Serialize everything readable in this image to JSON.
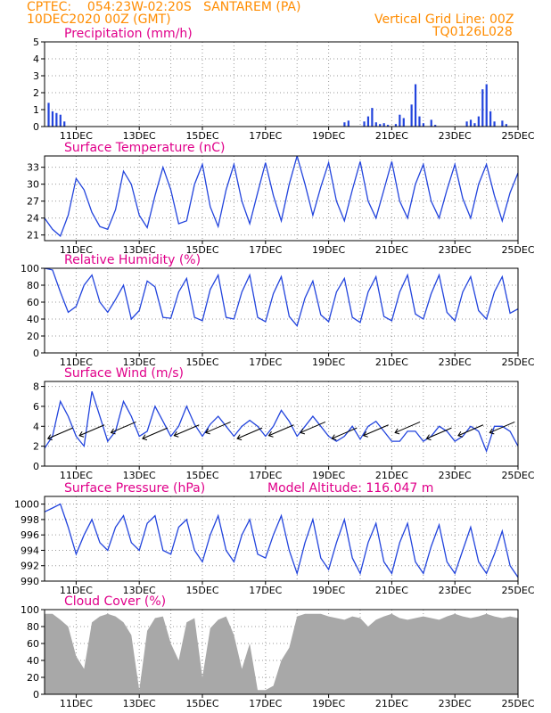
{
  "header": {
    "line1": "CPTEC:    054:23W-02:20S   SANTAREM (PA)",
    "line2": "10DEC2020 00Z (GMT)",
    "right1": "Vertical Grid Line: 00Z",
    "right2": "TQ0126L028"
  },
  "colors": {
    "series": "#2244dd",
    "cloud": "#a8a8a8",
    "title": "#e0008a",
    "header": "#ff8c00",
    "grid": "#999999"
  },
  "date_labels": [
    "11DEC",
    "13DEC",
    "15DEC",
    "17DEC",
    "19DEC",
    "21DEC",
    "23DEC",
    "25DEC"
  ],
  "chart_data": [
    {
      "id": "precip",
      "type": "bar",
      "title": "Precipitation (mm/h)",
      "ylabel": "",
      "ylim": [
        0,
        5
      ],
      "yticks": [
        0,
        1,
        2,
        3,
        4,
        5
      ],
      "grid": true,
      "x_range": [
        "2020-12-10T00:00Z",
        "2020-12-25T00:00Z"
      ],
      "x": [
        "2020-12-10T03:00Z",
        "2020-12-10T06:00Z",
        "2020-12-10T09:00Z",
        "2020-12-10T12:00Z",
        "2020-12-10T15:00Z",
        "2020-12-19T12:00Z",
        "2020-12-19T15:00Z",
        "2020-12-20T03:00Z",
        "2020-12-20T06:00Z",
        "2020-12-20T09:00Z",
        "2020-12-20T12:00Z",
        "2020-12-20T15:00Z",
        "2020-12-20T18:00Z",
        "2020-12-20T21:00Z",
        "2020-12-21T03:00Z",
        "2020-12-21T06:00Z",
        "2020-12-21T09:00Z",
        "2020-12-21T15:00Z",
        "2020-12-21T18:00Z",
        "2020-12-21T21:00Z",
        "2020-12-22T00:00Z",
        "2020-12-22T06:00Z",
        "2020-12-22T09:00Z",
        "2020-12-23T09:00Z",
        "2020-12-23T12:00Z",
        "2020-12-23T15:00Z",
        "2020-12-23T18:00Z",
        "2020-12-23T21:00Z",
        "2020-12-24T00:00Z",
        "2020-12-24T03:00Z",
        "2020-12-24T06:00Z",
        "2020-12-24T12:00Z",
        "2020-12-24T15:00Z"
      ],
      "values": [
        1.4,
        0.9,
        0.8,
        0.7,
        0.3,
        0.25,
        0.35,
        0.3,
        0.6,
        1.1,
        0.25,
        0.15,
        0.2,
        0.1,
        0.15,
        0.7,
        0.5,
        1.3,
        2.5,
        0.6,
        0.2,
        0.4,
        0.1,
        0.3,
        0.4,
        0.2,
        0.6,
        2.2,
        2.5,
        0.9,
        0.3,
        0.35,
        0.15
      ]
    },
    {
      "id": "temp",
      "type": "line",
      "title": "Surface Temperature (nC)",
      "ylabel": "",
      "ylim": [
        20,
        35
      ],
      "yticks": [
        21,
        24,
        27,
        30,
        33
      ],
      "grid": true,
      "x_range": [
        "2020-12-10T00:00Z",
        "2020-12-25T00:00Z"
      ],
      "x": [
        "2020-12-10T00:00Z",
        "2020-12-10T06:00Z",
        "2020-12-10T12:00Z",
        "2020-12-10T18:00Z",
        "2020-12-11T00:00Z",
        "2020-12-11T06:00Z",
        "2020-12-11T12:00Z",
        "2020-12-11T18:00Z",
        "2020-12-12T00:00Z",
        "2020-12-12T06:00Z",
        "2020-12-12T12:00Z",
        "2020-12-12T18:00Z",
        "2020-12-13T00:00Z",
        "2020-12-13T06:00Z",
        "2020-12-13T12:00Z",
        "2020-12-13T18:00Z",
        "2020-12-14T00:00Z",
        "2020-12-14T06:00Z",
        "2020-12-14T12:00Z",
        "2020-12-14T18:00Z",
        "2020-12-15T00:00Z",
        "2020-12-15T06:00Z",
        "2020-12-15T12:00Z",
        "2020-12-15T18:00Z",
        "2020-12-16T00:00Z",
        "2020-12-16T06:00Z",
        "2020-12-16T12:00Z",
        "2020-12-16T18:00Z",
        "2020-12-17T00:00Z",
        "2020-12-17T06:00Z",
        "2020-12-17T12:00Z",
        "2020-12-17T18:00Z",
        "2020-12-18T00:00Z",
        "2020-12-18T06:00Z",
        "2020-12-18T12:00Z",
        "2020-12-18T18:00Z",
        "2020-12-19T00:00Z",
        "2020-12-19T06:00Z",
        "2020-12-19T12:00Z",
        "2020-12-19T18:00Z",
        "2020-12-20T00:00Z",
        "2020-12-20T06:00Z",
        "2020-12-20T12:00Z",
        "2020-12-20T18:00Z",
        "2020-12-21T00:00Z",
        "2020-12-21T06:00Z",
        "2020-12-21T12:00Z",
        "2020-12-21T18:00Z",
        "2020-12-22T00:00Z",
        "2020-12-22T06:00Z",
        "2020-12-22T12:00Z",
        "2020-12-22T18:00Z",
        "2020-12-23T00:00Z",
        "2020-12-23T06:00Z",
        "2020-12-23T12:00Z",
        "2020-12-23T18:00Z",
        "2020-12-24T00:00Z",
        "2020-12-24T06:00Z",
        "2020-12-24T12:00Z",
        "2020-12-24T18:00Z",
        "2020-12-25T00:00Z"
      ],
      "values": [
        24,
        22,
        20.8,
        24.5,
        31,
        29,
        25,
        22.5,
        22,
        25.5,
        32.3,
        30,
        24.5,
        22.3,
        28,
        33,
        29,
        23,
        23.5,
        30,
        33.5,
        26,
        22.5,
        29,
        33.5,
        27,
        23,
        28.5,
        33.8,
        28,
        23.5,
        30,
        35,
        30,
        24.5,
        29.5,
        33.8,
        27,
        23.5,
        29,
        34,
        27,
        24,
        29,
        34,
        27,
        24,
        30,
        33.5,
        27,
        24,
        29,
        33.5,
        27.5,
        24,
        30,
        33.5,
        28,
        23.5,
        28.5,
        32
      ]
    },
    {
      "id": "rh",
      "type": "line",
      "title": "Relative Humidity (%)",
      "ylabel": "",
      "ylim": [
        0,
        100
      ],
      "yticks": [
        0,
        20,
        40,
        60,
        80,
        100
      ],
      "grid": true,
      "x_range": [
        "2020-12-10T00:00Z",
        "2020-12-25T00:00Z"
      ],
      "x": [
        "2020-12-10T00:00Z",
        "2020-12-10T06:00Z",
        "2020-12-10T12:00Z",
        "2020-12-10T18:00Z",
        "2020-12-11T00:00Z",
        "2020-12-11T06:00Z",
        "2020-12-11T12:00Z",
        "2020-12-11T18:00Z",
        "2020-12-12T00:00Z",
        "2020-12-12T06:00Z",
        "2020-12-12T12:00Z",
        "2020-12-12T18:00Z",
        "2020-12-13T00:00Z",
        "2020-12-13T06:00Z",
        "2020-12-13T12:00Z",
        "2020-12-13T18:00Z",
        "2020-12-14T00:00Z",
        "2020-12-14T06:00Z",
        "2020-12-14T12:00Z",
        "2020-12-14T18:00Z",
        "2020-12-15T00:00Z",
        "2020-12-15T06:00Z",
        "2020-12-15T12:00Z",
        "2020-12-15T18:00Z",
        "2020-12-16T00:00Z",
        "2020-12-16T06:00Z",
        "2020-12-16T12:00Z",
        "2020-12-16T18:00Z",
        "2020-12-17T00:00Z",
        "2020-12-17T06:00Z",
        "2020-12-17T12:00Z",
        "2020-12-17T18:00Z",
        "2020-12-18T00:00Z",
        "2020-12-18T06:00Z",
        "2020-12-18T12:00Z",
        "2020-12-18T18:00Z",
        "2020-12-19T00:00Z",
        "2020-12-19T06:00Z",
        "2020-12-19T12:00Z",
        "2020-12-19T18:00Z",
        "2020-12-20T00:00Z",
        "2020-12-20T06:00Z",
        "2020-12-20T12:00Z",
        "2020-12-20T18:00Z",
        "2020-12-21T00:00Z",
        "2020-12-21T06:00Z",
        "2020-12-21T12:00Z",
        "2020-12-21T18:00Z",
        "2020-12-22T00:00Z",
        "2020-12-22T06:00Z",
        "2020-12-22T12:00Z",
        "2020-12-22T18:00Z",
        "2020-12-23T00:00Z",
        "2020-12-23T06:00Z",
        "2020-12-23T12:00Z",
        "2020-12-23T18:00Z",
        "2020-12-24T00:00Z",
        "2020-12-24T06:00Z",
        "2020-12-24T12:00Z",
        "2020-12-24T18:00Z",
        "2020-12-25T00:00Z"
      ],
      "values": [
        100,
        98,
        72,
        48,
        55,
        80,
        92,
        60,
        48,
        63,
        80,
        40,
        50,
        85,
        78,
        42,
        41,
        72,
        88,
        42,
        38,
        75,
        92,
        42,
        40,
        72,
        92,
        42,
        37,
        70,
        90,
        43,
        32,
        65,
        85,
        45,
        37,
        72,
        88,
        42,
        36,
        72,
        90,
        43,
        38,
        72,
        92,
        46,
        40,
        70,
        92,
        48,
        38,
        72,
        90,
        50,
        40,
        72,
        90,
        47,
        52
      ]
    },
    {
      "id": "wind",
      "type": "line",
      "title": "Surface Wind (m/s)",
      "ylabel": "",
      "ylim": [
        0,
        8.5
      ],
      "yticks": [
        0,
        2,
        4,
        6,
        8
      ],
      "grid": true,
      "x_range": [
        "2020-12-10T00:00Z",
        "2020-12-25T00:00Z"
      ],
      "x": [
        "2020-12-10T00:00Z",
        "2020-12-10T06:00Z",
        "2020-12-10T12:00Z",
        "2020-12-10T18:00Z",
        "2020-12-11T00:00Z",
        "2020-12-11T06:00Z",
        "2020-12-11T12:00Z",
        "2020-12-11T18:00Z",
        "2020-12-12T00:00Z",
        "2020-12-12T06:00Z",
        "2020-12-12T12:00Z",
        "2020-12-12T18:00Z",
        "2020-12-13T00:00Z",
        "2020-12-13T06:00Z",
        "2020-12-13T12:00Z",
        "2020-12-13T18:00Z",
        "2020-12-14T00:00Z",
        "2020-12-14T06:00Z",
        "2020-12-14T12:00Z",
        "2020-12-14T18:00Z",
        "2020-12-15T00:00Z",
        "2020-12-15T06:00Z",
        "2020-12-15T12:00Z",
        "2020-12-15T18:00Z",
        "2020-12-16T00:00Z",
        "2020-12-16T06:00Z",
        "2020-12-16T12:00Z",
        "2020-12-16T18:00Z",
        "2020-12-17T00:00Z",
        "2020-12-17T06:00Z",
        "2020-12-17T12:00Z",
        "2020-12-17T18:00Z",
        "2020-12-18T00:00Z",
        "2020-12-18T06:00Z",
        "2020-12-18T12:00Z",
        "2020-12-18T18:00Z",
        "2020-12-19T00:00Z",
        "2020-12-19T06:00Z",
        "2020-12-19T12:00Z",
        "2020-12-19T18:00Z",
        "2020-12-20T00:00Z",
        "2020-12-20T06:00Z",
        "2020-12-20T12:00Z",
        "2020-12-20T18:00Z",
        "2020-12-21T00:00Z",
        "2020-12-21T06:00Z",
        "2020-12-21T12:00Z",
        "2020-12-21T18:00Z",
        "2020-12-22T00:00Z",
        "2020-12-22T06:00Z",
        "2020-12-22T12:00Z",
        "2020-12-22T18:00Z",
        "2020-12-23T00:00Z",
        "2020-12-23T06:00Z",
        "2020-12-23T12:00Z",
        "2020-12-23T18:00Z",
        "2020-12-24T00:00Z",
        "2020-12-24T06:00Z",
        "2020-12-24T12:00Z",
        "2020-12-24T18:00Z",
        "2020-12-25T00:00Z"
      ],
      "values": [
        1.8,
        3,
        6.5,
        5,
        3,
        2,
        7.5,
        5,
        2.5,
        3.5,
        6.5,
        5,
        3,
        3.5,
        6,
        4.5,
        3,
        4,
        6,
        4.2,
        3,
        4.2,
        5,
        4,
        3,
        4,
        4.6,
        4,
        3,
        4,
        5.6,
        4.5,
        3,
        4,
        5,
        4,
        3,
        2.5,
        3,
        4,
        2.7,
        4,
        4.5,
        3.5,
        2.5,
        2.5,
        3.5,
        3.5,
        2.5,
        3,
        4,
        3.5,
        2.5,
        3,
        4,
        3.5,
        1.5,
        4,
        4,
        3.5,
        2
      ]
    },
    {
      "id": "pres",
      "type": "line",
      "title": "Surface Pressure (hPa)",
      "subtitle": "Model Altitude: 116.047 m",
      "ylabel": "",
      "ylim": [
        990,
        1001
      ],
      "yticks": [
        990,
        992,
        994,
        996,
        998,
        1000
      ],
      "grid": true,
      "x_range": [
        "2020-12-10T00:00Z",
        "2020-12-25T00:00Z"
      ],
      "x": [
        "2020-12-10T00:00Z",
        "2020-12-10T06:00Z",
        "2020-12-10T12:00Z",
        "2020-12-10T18:00Z",
        "2020-12-11T00:00Z",
        "2020-12-11T06:00Z",
        "2020-12-11T12:00Z",
        "2020-12-11T18:00Z",
        "2020-12-12T00:00Z",
        "2020-12-12T06:00Z",
        "2020-12-12T12:00Z",
        "2020-12-12T18:00Z",
        "2020-12-13T00:00Z",
        "2020-12-13T06:00Z",
        "2020-12-13T12:00Z",
        "2020-12-13T18:00Z",
        "2020-12-14T00:00Z",
        "2020-12-14T06:00Z",
        "2020-12-14T12:00Z",
        "2020-12-14T18:00Z",
        "2020-12-15T00:00Z",
        "2020-12-15T06:00Z",
        "2020-12-15T12:00Z",
        "2020-12-15T18:00Z",
        "2020-12-16T00:00Z",
        "2020-12-16T06:00Z",
        "2020-12-16T12:00Z",
        "2020-12-16T18:00Z",
        "2020-12-17T00:00Z",
        "2020-12-17T06:00Z",
        "2020-12-17T12:00Z",
        "2020-12-17T18:00Z",
        "2020-12-18T00:00Z",
        "2020-12-18T06:00Z",
        "2020-12-18T12:00Z",
        "2020-12-18T18:00Z",
        "2020-12-19T00:00Z",
        "2020-12-19T06:00Z",
        "2020-12-19T12:00Z",
        "2020-12-19T18:00Z",
        "2020-12-20T00:00Z",
        "2020-12-20T06:00Z",
        "2020-12-20T12:00Z",
        "2020-12-20T18:00Z",
        "2020-12-21T00:00Z",
        "2020-12-21T06:00Z",
        "2020-12-21T12:00Z",
        "2020-12-21T18:00Z",
        "2020-12-22T00:00Z",
        "2020-12-22T06:00Z",
        "2020-12-22T12:00Z",
        "2020-12-22T18:00Z",
        "2020-12-23T00:00Z",
        "2020-12-23T06:00Z",
        "2020-12-23T12:00Z",
        "2020-12-23T18:00Z",
        "2020-12-24T00:00Z",
        "2020-12-24T06:00Z",
        "2020-12-24T12:00Z",
        "2020-12-24T18:00Z",
        "2020-12-25T00:00Z"
      ],
      "values": [
        999,
        999.5,
        1000,
        997,
        993.5,
        996,
        998,
        995,
        994,
        997,
        998.5,
        995,
        994,
        997.5,
        998.5,
        994,
        993.5,
        997,
        998,
        994,
        992.5,
        996,
        998.5,
        994,
        992.5,
        996,
        998,
        993.5,
        993,
        996,
        998.5,
        994,
        991,
        995,
        998,
        993,
        991.5,
        995,
        998,
        993,
        991,
        995,
        997.5,
        992.5,
        991,
        995,
        997.5,
        992.5,
        991,
        994.5,
        997.3,
        992.5,
        991,
        994,
        997,
        992.5,
        991,
        993.5,
        996.5,
        992,
        990.5
      ]
    },
    {
      "id": "cloud",
      "type": "area",
      "title": "Cloud Cover (%)",
      "ylabel": "",
      "ylim": [
        0,
        100
      ],
      "yticks": [
        0,
        20,
        40,
        60,
        80,
        100
      ],
      "grid": true,
      "x_range": [
        "2020-12-10T00:00Z",
        "2020-12-25T00:00Z"
      ],
      "x": [
        "2020-12-10T00:00Z",
        "2020-12-10T06:00Z",
        "2020-12-10T12:00Z",
        "2020-12-10T18:00Z",
        "2020-12-11T00:00Z",
        "2020-12-11T06:00Z",
        "2020-12-11T12:00Z",
        "2020-12-11T18:00Z",
        "2020-12-12T00:00Z",
        "2020-12-12T06:00Z",
        "2020-12-12T12:00Z",
        "2020-12-12T18:00Z",
        "2020-12-13T00:00Z",
        "2020-12-13T06:00Z",
        "2020-12-13T12:00Z",
        "2020-12-13T18:00Z",
        "2020-12-14T00:00Z",
        "2020-12-14T06:00Z",
        "2020-12-14T12:00Z",
        "2020-12-14T18:00Z",
        "2020-12-15T00:00Z",
        "2020-12-15T06:00Z",
        "2020-12-15T12:00Z",
        "2020-12-15T18:00Z",
        "2020-12-16T00:00Z",
        "2020-12-16T06:00Z",
        "2020-12-16T12:00Z",
        "2020-12-16T18:00Z",
        "2020-12-17T00:00Z",
        "2020-12-17T06:00Z",
        "2020-12-17T12:00Z",
        "2020-12-17T18:00Z",
        "2020-12-18T00:00Z",
        "2020-12-18T06:00Z",
        "2020-12-18T12:00Z",
        "2020-12-18T18:00Z",
        "2020-12-19T00:00Z",
        "2020-12-19T06:00Z",
        "2020-12-19T12:00Z",
        "2020-12-19T18:00Z",
        "2020-12-20T00:00Z",
        "2020-12-20T06:00Z",
        "2020-12-20T12:00Z",
        "2020-12-20T18:00Z",
        "2020-12-21T00:00Z",
        "2020-12-21T06:00Z",
        "2020-12-21T12:00Z",
        "2020-12-21T18:00Z",
        "2020-12-22T00:00Z",
        "2020-12-22T06:00Z",
        "2020-12-22T12:00Z",
        "2020-12-22T18:00Z",
        "2020-12-23T00:00Z",
        "2020-12-23T06:00Z",
        "2020-12-23T12:00Z",
        "2020-12-23T18:00Z",
        "2020-12-24T00:00Z",
        "2020-12-24T06:00Z",
        "2020-12-24T12:00Z",
        "2020-12-24T18:00Z",
        "2020-12-25T00:00Z"
      ],
      "values": [
        95,
        95,
        88,
        80,
        45,
        30,
        85,
        92,
        95,
        92,
        85,
        70,
        5,
        75,
        90,
        92,
        60,
        40,
        85,
        90,
        20,
        78,
        88,
        92,
        70,
        30,
        60,
        5,
        5,
        10,
        40,
        55,
        92,
        95,
        95,
        95,
        92,
        90,
        88,
        92,
        90,
        80,
        88,
        92,
        95,
        90,
        88,
        90,
        92,
        90,
        88,
        92,
        95,
        92,
        90,
        92,
        95,
        92,
        90,
        92,
        90
      ]
    }
  ]
}
